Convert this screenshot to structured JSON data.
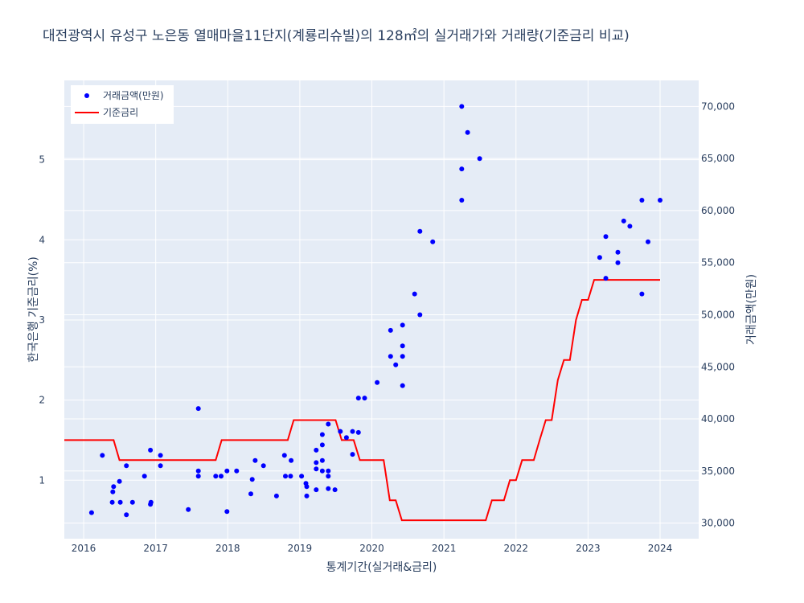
{
  "colors": {
    "plot_bg": "#e5ecf6",
    "grid": "#ffffff",
    "rate_line": "#ff0000",
    "price_marker": "#0000ff",
    "text": "#2a3f5f"
  },
  "chart_data": {
    "type": "scatter",
    "title": "대전광역시 유성구 노은동 열매마을11단지(계룡리슈빌)의 128㎡의 실거래가와 거래량(기준금리 비교)",
    "xlabel": "통계기간(실거래&금리)",
    "ylabel_left": "한국은행 기준금리(%)",
    "ylabel_right": "거래금액(만원)",
    "x_ticks": [
      "2016",
      "2017",
      "2018",
      "2019",
      "2020",
      "2021",
      "2022",
      "2023",
      "2024"
    ],
    "y_left_ticks": [
      "1",
      "2",
      "3",
      "4",
      "5"
    ],
    "y_right_ticks": [
      "30,000",
      "35,000",
      "40,000",
      "45,000",
      "50,000",
      "55,000",
      "60,000",
      "65,000",
      "70,000"
    ],
    "x_range": [
      "2015-09-25",
      "2024-07-15"
    ],
    "y_left_range": [
      0.27,
      5.99
    ],
    "y_right_range": [
      28500,
      72500
    ],
    "grid": true,
    "legend_position": "top-left",
    "series": [
      {
        "name": "거래금액(만원)",
        "kind": "markers",
        "axis": "right",
        "points": [
          [
            "2016-02-10",
            31000
          ],
          [
            "2016-04-05",
            36500
          ],
          [
            "2016-05-25",
            32000
          ],
          [
            "2016-05-28",
            33000
          ],
          [
            "2016-06-01",
            33500
          ],
          [
            "2016-07-05",
            32000
          ],
          [
            "2016-07-01",
            34000
          ],
          [
            "2016-08-05",
            35500
          ],
          [
            "2016-08-05",
            30800
          ],
          [
            "2016-09-05",
            32000
          ],
          [
            "2016-11-05",
            34500
          ],
          [
            "2016-12-05",
            31800
          ],
          [
            "2016-12-08",
            32000
          ],
          [
            "2016-12-05",
            37000
          ],
          [
            "2017-01-25",
            36500
          ],
          [
            "2017-01-25",
            35500
          ],
          [
            "2017-06-15",
            31300
          ],
          [
            "2017-08-05",
            41000
          ],
          [
            "2017-08-05",
            35000
          ],
          [
            "2017-08-05",
            34500
          ],
          [
            "2017-11-01",
            34500
          ],
          [
            "2017-11-28",
            34500
          ],
          [
            "2017-12-28",
            31100
          ],
          [
            "2017-12-28",
            35000
          ],
          [
            "2018-02-15",
            35000
          ],
          [
            "2018-04-28",
            32800
          ],
          [
            "2018-05-05",
            34200
          ],
          [
            "2018-05-20",
            36000
          ],
          [
            "2018-07-01",
            35500
          ],
          [
            "2018-09-05",
            32600
          ],
          [
            "2018-10-15",
            36500
          ],
          [
            "2018-10-20",
            34500
          ],
          [
            "2018-11-15",
            34500
          ],
          [
            "2018-11-18",
            36000
          ],
          [
            "2019-01-10",
            34500
          ],
          [
            "2019-02-01",
            33800
          ],
          [
            "2019-02-05",
            32600
          ],
          [
            "2019-02-05",
            33500
          ],
          [
            "2019-03-25",
            33200
          ],
          [
            "2019-03-25",
            35200
          ],
          [
            "2019-03-25",
            35800
          ],
          [
            "2019-03-25",
            37000
          ],
          [
            "2019-04-25",
            38500
          ],
          [
            "2019-04-25",
            37500
          ],
          [
            "2019-04-25",
            36000
          ],
          [
            "2019-04-25",
            35000
          ],
          [
            "2019-05-25",
            33300
          ],
          [
            "2019-05-25",
            34500
          ],
          [
            "2019-05-25",
            35000
          ],
          [
            "2019-05-25",
            39500
          ],
          [
            "2019-06-28",
            33200
          ],
          [
            "2019-07-25",
            38800
          ],
          [
            "2019-08-25",
            38200
          ],
          [
            "2019-09-25",
            36600
          ],
          [
            "2019-09-25",
            38800
          ],
          [
            "2019-10-25",
            38700
          ],
          [
            "2019-10-25",
            42000
          ],
          [
            "2019-11-25",
            42000
          ],
          [
            "2020-01-28",
            43500
          ],
          [
            "2020-04-05",
            46000
          ],
          [
            "2020-04-05",
            48500
          ],
          [
            "2020-05-01",
            45200
          ],
          [
            "2020-06-05",
            43200
          ],
          [
            "2020-06-05",
            46000
          ],
          [
            "2020-06-05",
            47000
          ],
          [
            "2020-06-05",
            49000
          ],
          [
            "2020-08-05",
            52000
          ],
          [
            "2020-09-01",
            50000
          ],
          [
            "2020-09-01",
            58000
          ],
          [
            "2020-11-05",
            57000
          ],
          [
            "2021-04-01",
            61000
          ],
          [
            "2021-04-01",
            64000
          ],
          [
            "2021-04-01",
            70000
          ],
          [
            "2021-05-01",
            67500
          ],
          [
            "2021-07-01",
            65000
          ],
          [
            "2023-03-01",
            55500
          ],
          [
            "2023-04-01",
            53500
          ],
          [
            "2023-04-01",
            57500
          ],
          [
            "2023-06-01",
            55000
          ],
          [
            "2023-06-01",
            56000
          ],
          [
            "2023-07-01",
            59000
          ],
          [
            "2023-08-01",
            58500
          ],
          [
            "2023-10-01",
            52000
          ],
          [
            "2023-10-01",
            61000
          ],
          [
            "2023-11-01",
            57000
          ],
          [
            "2024-01-01",
            61000
          ]
        ]
      },
      {
        "name": "기준금리",
        "kind": "line",
        "axis": "left",
        "points": [
          [
            "2015-09-25",
            1.5
          ],
          [
            "2016-06-01",
            1.5
          ],
          [
            "2016-07-01",
            1.25
          ],
          [
            "2017-11-01",
            1.25
          ],
          [
            "2017-12-01",
            1.5
          ],
          [
            "2018-11-01",
            1.5
          ],
          [
            "2018-12-01",
            1.75
          ],
          [
            "2019-07-01",
            1.75
          ],
          [
            "2019-08-01",
            1.5
          ],
          [
            "2019-10-01",
            1.5
          ],
          [
            "2019-11-01",
            1.25
          ],
          [
            "2020-03-01",
            1.25
          ],
          [
            "2020-04-01",
            0.75
          ],
          [
            "2020-05-01",
            0.75
          ],
          [
            "2020-06-01",
            0.5
          ],
          [
            "2021-08-01",
            0.5
          ],
          [
            "2021-09-01",
            0.75
          ],
          [
            "2021-11-01",
            0.75
          ],
          [
            "2021-12-01",
            1.0
          ],
          [
            "2022-01-01",
            1.0
          ],
          [
            "2022-02-01",
            1.25
          ],
          [
            "2022-04-01",
            1.25
          ],
          [
            "2022-05-01",
            1.5
          ],
          [
            "2022-06-01",
            1.75
          ],
          [
            "2022-07-01",
            1.75
          ],
          [
            "2022-08-01",
            2.25
          ],
          [
            "2022-09-01",
            2.5
          ],
          [
            "2022-10-01",
            2.5
          ],
          [
            "2022-11-01",
            3.0
          ],
          [
            "2022-12-01",
            3.25
          ],
          [
            "2023-01-01",
            3.25
          ],
          [
            "2023-02-01",
            3.5
          ],
          [
            "2024-01-01",
            3.5
          ]
        ]
      }
    ]
  }
}
